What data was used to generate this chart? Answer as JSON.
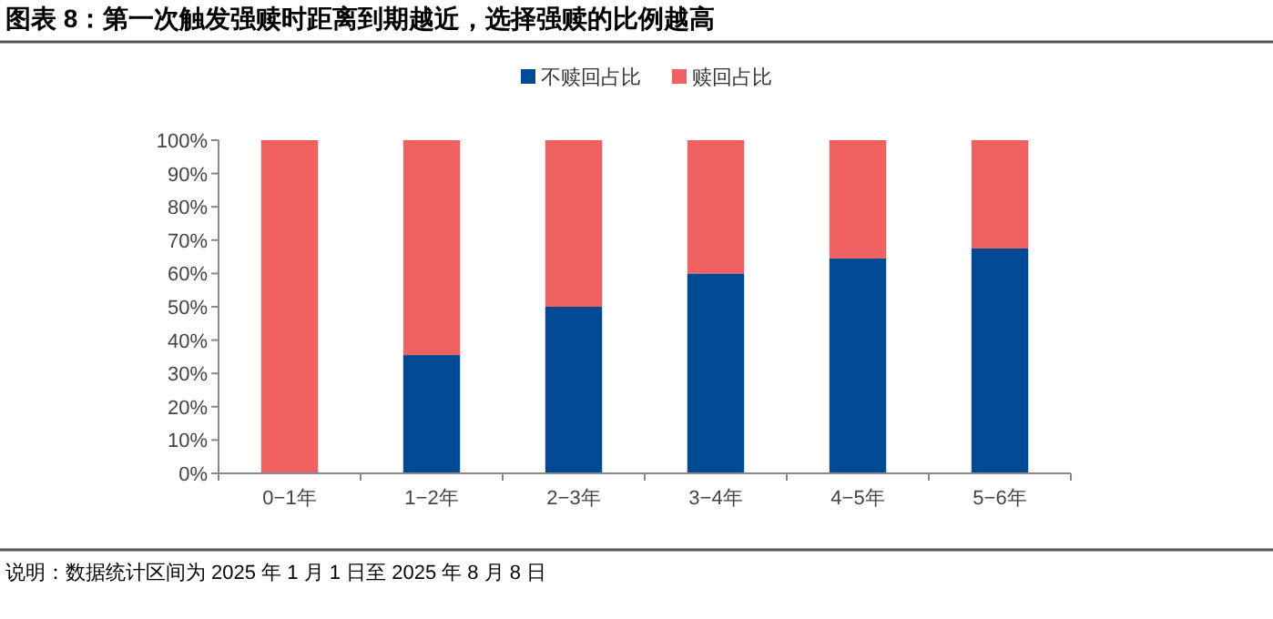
{
  "chart_data": {
    "type": "bar",
    "stacked": true,
    "title": "图表 8：第一次触发强赎时距离到期越近，选择强赎的比例越高",
    "categories": [
      "0−1年",
      "1−2年",
      "2−3年",
      "3−4年",
      "4−5年",
      "5−6年"
    ],
    "series": [
      {
        "name": "不赎回占比",
        "color": "#004a93",
        "values": [
          0,
          35.5,
          50,
          60,
          64.5,
          67.5
        ]
      },
      {
        "name": "赎回占比",
        "color": "#ef6161",
        "values": [
          100,
          64.5,
          50,
          40,
          35.5,
          32.5
        ]
      }
    ],
    "ylim": [
      0,
      100
    ],
    "yticks": [
      {
        "value": 0,
        "label": "0%"
      },
      {
        "value": 10,
        "label": "10%"
      },
      {
        "value": 20,
        "label": "20%"
      },
      {
        "value": 30,
        "label": "30%"
      },
      {
        "value": 40,
        "label": "40%"
      },
      {
        "value": 50,
        "label": "50%"
      },
      {
        "value": 60,
        "label": "60%"
      },
      {
        "value": 70,
        "label": "70%"
      },
      {
        "value": 80,
        "label": "80%"
      },
      {
        "value": 90,
        "label": "90%"
      },
      {
        "value": 100,
        "label": "100%"
      }
    ],
    "grid": false,
    "legend": "top",
    "annotations": [
      "说明：数据统计区间为 2025 年 1 月 1 日至 2025 年 8 月 8 日"
    ]
  }
}
